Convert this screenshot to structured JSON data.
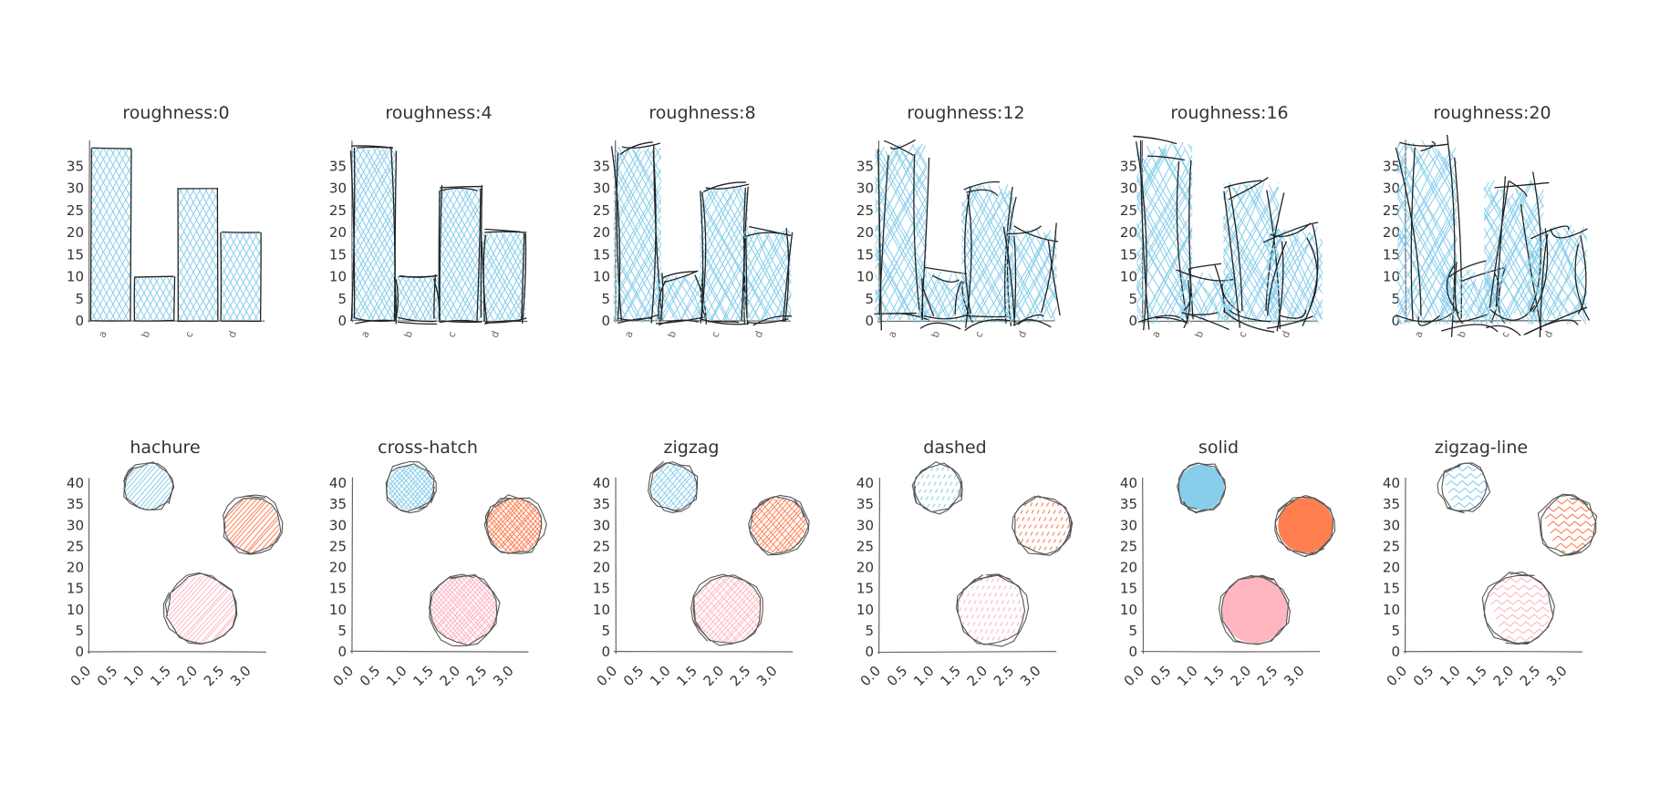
{
  "colors": {
    "blue": "#87CEEB",
    "orange": "#FF7F50",
    "pink": "#FFB6C1",
    "ink": "#222222",
    "axis": "#666666"
  },
  "chart_data": [
    {
      "type": "bar",
      "title": "roughness:0",
      "categories": [
        "a",
        "b",
        "c",
        "d"
      ],
      "values": [
        39,
        10,
        30,
        20
      ],
      "ylim": [
        0,
        40
      ],
      "yticks": [
        "0",
        "5",
        "10",
        "15",
        "20",
        "25",
        "30",
        "35"
      ]
    },
    {
      "type": "bar",
      "title": "roughness:4",
      "categories": [
        "a",
        "b",
        "c",
        "d"
      ],
      "values": [
        39,
        10,
        30,
        20
      ],
      "ylim": [
        0,
        40
      ],
      "yticks": [
        "0",
        "5",
        "10",
        "15",
        "20",
        "25",
        "30",
        "35"
      ]
    },
    {
      "type": "bar",
      "title": "roughness:8",
      "categories": [
        "a",
        "b",
        "c",
        "d"
      ],
      "values": [
        39,
        10,
        30,
        20
      ],
      "ylim": [
        0,
        40
      ],
      "yticks": [
        "0",
        "5",
        "10",
        "15",
        "20",
        "25",
        "30",
        "35"
      ]
    },
    {
      "type": "bar",
      "title": "roughness:12",
      "categories": [
        "a",
        "b",
        "c",
        "d"
      ],
      "values": [
        39,
        10,
        30,
        20
      ],
      "ylim": [
        0,
        40
      ],
      "yticks": [
        "0",
        "5",
        "10",
        "15",
        "20",
        "25",
        "30",
        "35"
      ]
    },
    {
      "type": "bar",
      "title": "roughness:16",
      "categories": [
        "a",
        "b",
        "c",
        "d"
      ],
      "values": [
        39,
        10,
        30,
        20
      ],
      "ylim": [
        0,
        40
      ],
      "yticks": [
        "0",
        "5",
        "10",
        "15",
        "20",
        "25",
        "30",
        "35"
      ]
    },
    {
      "type": "bar",
      "title": "roughness:20",
      "categories": [
        "a",
        "b",
        "c",
        "d"
      ],
      "values": [
        39,
        10,
        30,
        20
      ],
      "ylim": [
        0,
        40
      ],
      "yticks": [
        "0",
        "5",
        "10",
        "15",
        "20",
        "25",
        "30",
        "35"
      ]
    },
    {
      "type": "scatter",
      "title": "hachure",
      "fill": "hachure",
      "xlim": [
        0,
        3.25
      ],
      "ylim": [
        0,
        40
      ],
      "xticks": [
        "0.0",
        "0.5",
        "1.0",
        "1.5",
        "2.0",
        "2.5",
        "3.0"
      ],
      "yticks": [
        "0",
        "5",
        "10",
        "15",
        "20",
        "25",
        "30",
        "35",
        "40"
      ],
      "points": [
        {
          "x": 1.1,
          "y": 39,
          "size": 1.0,
          "color": "blue"
        },
        {
          "x": 3.05,
          "y": 30,
          "size": 1.2,
          "color": "orange"
        },
        {
          "x": 2.1,
          "y": 10,
          "size": 1.45,
          "color": "pink"
        }
      ]
    },
    {
      "type": "scatter",
      "title": "cross-hatch",
      "fill": "cross-hatch",
      "xlim": [
        0,
        3.25
      ],
      "ylim": [
        0,
        40
      ],
      "xticks": [
        "0.0",
        "0.5",
        "1.0",
        "1.5",
        "2.0",
        "2.5",
        "3.0"
      ],
      "yticks": [
        "0",
        "5",
        "10",
        "15",
        "20",
        "25",
        "30",
        "35",
        "40"
      ],
      "points": [
        {
          "x": 1.1,
          "y": 39,
          "size": 1.0,
          "color": "blue"
        },
        {
          "x": 3.05,
          "y": 30,
          "size": 1.2,
          "color": "orange"
        },
        {
          "x": 2.1,
          "y": 10,
          "size": 1.45,
          "color": "pink"
        }
      ]
    },
    {
      "type": "scatter",
      "title": "zigzag",
      "fill": "zigzag",
      "xlim": [
        0,
        3.25
      ],
      "ylim": [
        0,
        40
      ],
      "xticks": [
        "0.0",
        "0.5",
        "1.0",
        "1.5",
        "2.0",
        "2.5",
        "3.0"
      ],
      "yticks": [
        "0",
        "5",
        "10",
        "15",
        "20",
        "25",
        "30",
        "35",
        "40"
      ],
      "points": [
        {
          "x": 1.1,
          "y": 39,
          "size": 1.0,
          "color": "blue"
        },
        {
          "x": 3.05,
          "y": 30,
          "size": 1.2,
          "color": "orange"
        },
        {
          "x": 2.1,
          "y": 10,
          "size": 1.45,
          "color": "pink"
        }
      ]
    },
    {
      "type": "scatter",
      "title": "dashed",
      "fill": "dashed",
      "xlim": [
        0,
        3.25
      ],
      "ylim": [
        0,
        40
      ],
      "xticks": [
        "0.0",
        "0.5",
        "1.0",
        "1.5",
        "2.0",
        "2.5",
        "3.0"
      ],
      "yticks": [
        "0",
        "5",
        "10",
        "15",
        "20",
        "25",
        "30",
        "35",
        "40"
      ],
      "points": [
        {
          "x": 1.1,
          "y": 39,
          "size": 1.0,
          "color": "blue"
        },
        {
          "x": 3.05,
          "y": 30,
          "size": 1.2,
          "color": "orange"
        },
        {
          "x": 2.1,
          "y": 10,
          "size": 1.45,
          "color": "pink"
        }
      ]
    },
    {
      "type": "scatter",
      "title": "solid",
      "fill": "solid",
      "xlim": [
        0,
        3.25
      ],
      "ylim": [
        0,
        40
      ],
      "xticks": [
        "0.0",
        "0.5",
        "1.0",
        "1.5",
        "2.0",
        "2.5",
        "3.0"
      ],
      "yticks": [
        "0",
        "5",
        "10",
        "15",
        "20",
        "25",
        "30",
        "35",
        "40"
      ],
      "points": [
        {
          "x": 1.1,
          "y": 39,
          "size": 1.0,
          "color": "blue"
        },
        {
          "x": 3.05,
          "y": 30,
          "size": 1.2,
          "color": "orange"
        },
        {
          "x": 2.1,
          "y": 10,
          "size": 1.45,
          "color": "pink"
        }
      ]
    },
    {
      "type": "scatter",
      "title": "zigzag-line",
      "fill": "zigzag-line",
      "xlim": [
        0,
        3.25
      ],
      "ylim": [
        0,
        40
      ],
      "xticks": [
        "0.0",
        "0.5",
        "1.0",
        "1.5",
        "2.0",
        "2.5",
        "3.0"
      ],
      "yticks": [
        "0",
        "5",
        "10",
        "15",
        "20",
        "25",
        "30",
        "35",
        "40"
      ],
      "points": [
        {
          "x": 1.1,
          "y": 39,
          "size": 1.0,
          "color": "blue"
        },
        {
          "x": 3.05,
          "y": 30,
          "size": 1.2,
          "color": "orange"
        },
        {
          "x": 2.1,
          "y": 10,
          "size": 1.45,
          "color": "pink"
        }
      ]
    }
  ]
}
